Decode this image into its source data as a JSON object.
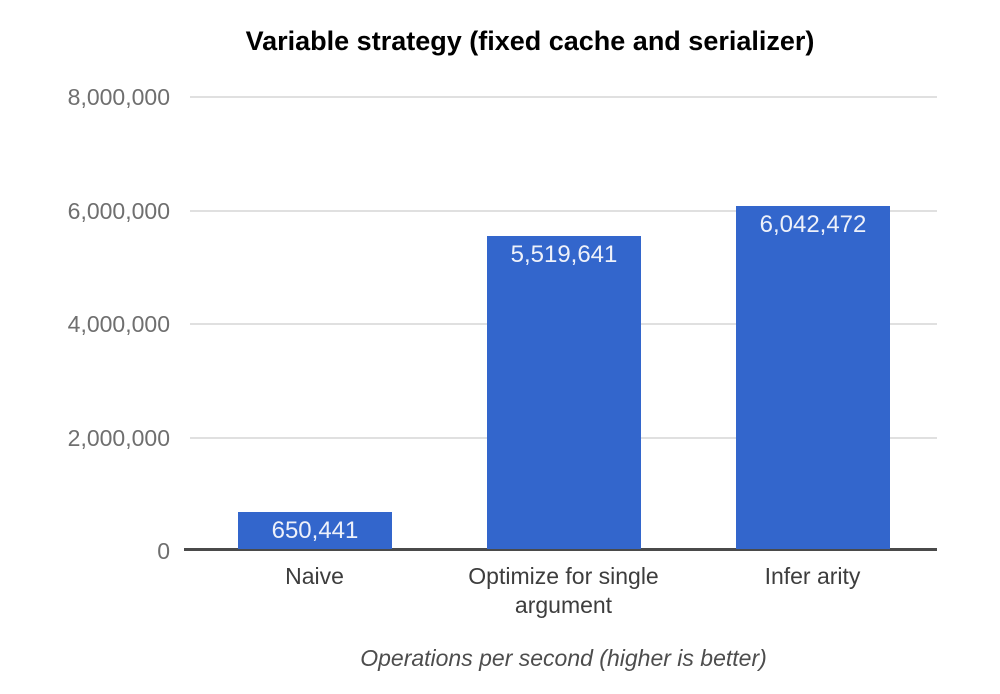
{
  "chart_data": {
    "type": "bar",
    "title": "Variable strategy (fixed cache and serializer)",
    "categories": [
      "Naive",
      "Optimize for single argument",
      "Infer arity"
    ],
    "values": [
      650441,
      5519641,
      6042472
    ],
    "value_labels": [
      "650,441",
      "5,519,641",
      "6,042,472"
    ],
    "xlabel": "Operations per second (higher is better)",
    "ylabel": "",
    "ylim": [
      0,
      8000000
    ],
    "ytick_interval": 2000000,
    "yticks": [
      {
        "value": 0,
        "label": "0"
      },
      {
        "value": 2000000,
        "label": "2,000,000"
      },
      {
        "value": 4000000,
        "label": "4,000,000"
      },
      {
        "value": 6000000,
        "label": "6,000,000"
      },
      {
        "value": 8000000,
        "label": "8,000,000"
      }
    ],
    "grid": true,
    "legend": "none",
    "bar_color": "#3366cc",
    "annotation_color": "#eef1fa",
    "bar_width_ratio": 0.618
  }
}
